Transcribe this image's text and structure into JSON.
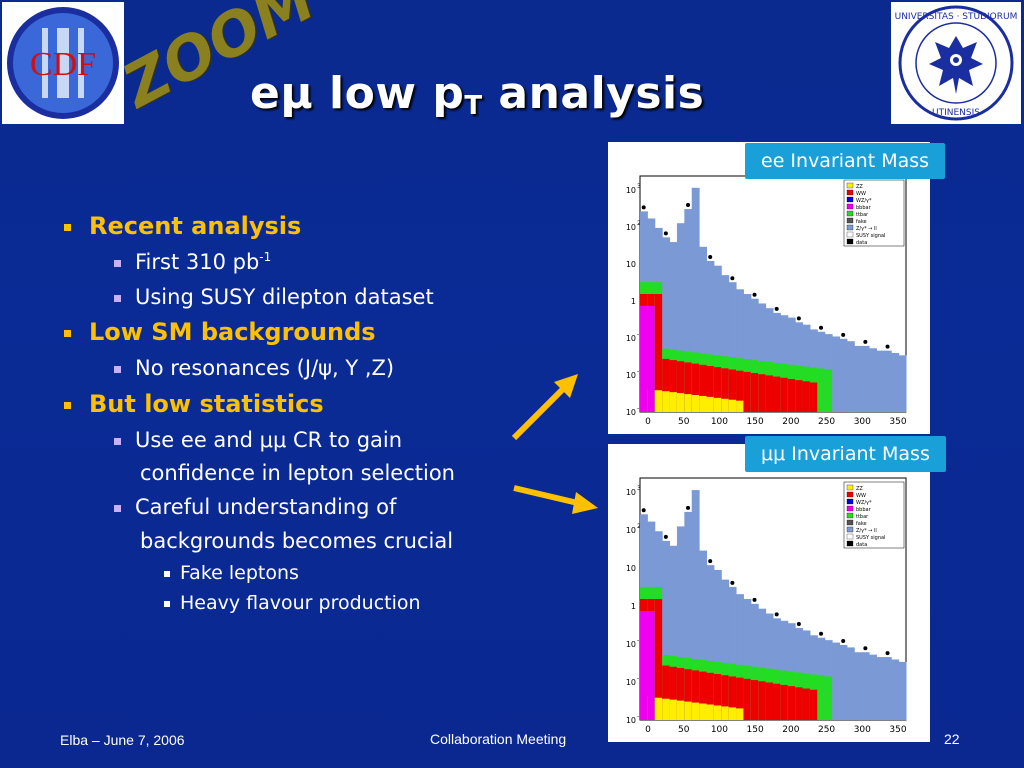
{
  "title": {
    "main": "eμ low p",
    "sub": "T",
    "tail": " analysis"
  },
  "zoom": "ZOOM",
  "logos": {
    "left_text": "CDF",
    "right_ring": "UNIVERSITAS·STUDIORUM·UTINENSIS"
  },
  "bullets": [
    {
      "level": 1,
      "text": "Recent analysis"
    },
    {
      "level": 2,
      "text": "First 310 pb",
      "sup": "-1"
    },
    {
      "level": 2,
      "text": "Using SUSY dilepton dataset"
    },
    {
      "level": 1,
      "text": "Low SM backgrounds"
    },
    {
      "level": 2,
      "text": "No resonances (J/ψ, Y ,Z)"
    },
    {
      "level": 1,
      "text": "But low statistics"
    },
    {
      "level": 2,
      "text": "Use ee and μμ CR to gain"
    },
    {
      "level": 2,
      "text": "confidence in lepton selection",
      "cont": true
    },
    {
      "level": 2,
      "text": "Careful understanding of"
    },
    {
      "level": 2,
      "text": "backgrounds becomes crucial",
      "cont": true
    },
    {
      "level": 3,
      "text": "Fake leptons"
    },
    {
      "level": 3,
      "text": "Heavy flavour production"
    }
  ],
  "plot_labels": {
    "top": "ee Invariant Mass",
    "bottom": "μμ Invariant Mass"
  },
  "legend": [
    "ZZ",
    "WW",
    "WZ/γ*",
    "bbbar",
    "ttbar",
    "fake",
    "Z/γ* → ll",
    "SUSY signal",
    "data"
  ],
  "axis": {
    "x_ticks": [
      "0",
      "50",
      "100",
      "150",
      "200",
      "250",
      "300",
      "350"
    ],
    "y_ticks": [
      "10",
      "10",
      "10",
      "1",
      "10",
      "10",
      "10"
    ],
    "y_exps": [
      "3",
      "2",
      "",
      "",
      "-1",
      "-2",
      "-3"
    ]
  },
  "colors": {
    "accent": "#ffc000",
    "label_bg": "#1aa0d8"
  },
  "footer": {
    "left": "Elba – June 7, 2006",
    "center": "Collaboration Meeting",
    "page": "22"
  }
}
